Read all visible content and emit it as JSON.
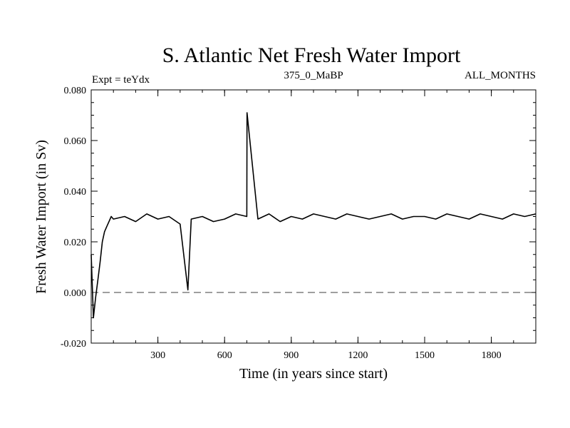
{
  "header": {
    "title": "S. Atlantic Net Fresh Water Import",
    "experiment": "Expt = teYdx",
    "period": "375_0_MaBP",
    "months": "ALL_MONTHS"
  },
  "chart_data": {
    "type": "line",
    "title": "S. Atlantic Net Fresh Water Import",
    "xlabel": "Time (in years since start)",
    "ylabel": "Fresh Water Import (in Sv)",
    "xlim": [
      0,
      2000
    ],
    "ylim": [
      -0.02,
      0.08
    ],
    "x_ticks": [
      300,
      600,
      900,
      1200,
      1500,
      1800
    ],
    "x_tick_labels": [
      "300",
      "600",
      "900",
      "1200",
      "1500",
      "1800"
    ],
    "y_ticks": [
      -0.02,
      0.0,
      0.02,
      0.04,
      0.06,
      0.08
    ],
    "y_tick_labels": [
      "-0.020",
      "0.000",
      "0.020",
      "0.040",
      "0.060",
      "0.080"
    ],
    "reference_line": {
      "y": 0.0,
      "style": "dashed"
    },
    "series": [
      {
        "name": "net fresh water import",
        "color": "#000000",
        "x": [
          0,
          10,
          20,
          30,
          40,
          50,
          60,
          70,
          80,
          90,
          100,
          150,
          200,
          250,
          300,
          350,
          400,
          435,
          450,
          500,
          550,
          600,
          650,
          700,
          701,
          750,
          800,
          850,
          900,
          950,
          1000,
          1050,
          1100,
          1150,
          1200,
          1250,
          1300,
          1350,
          1400,
          1450,
          1500,
          1550,
          1600,
          1650,
          1700,
          1750,
          1800,
          1850,
          1900,
          1950,
          2000
        ],
        "y": [
          0.015,
          -0.01,
          -0.002,
          0.005,
          0.012,
          0.02,
          0.024,
          0.026,
          0.028,
          0.03,
          0.029,
          0.03,
          0.028,
          0.031,
          0.029,
          0.03,
          0.027,
          0.001,
          0.029,
          0.03,
          0.028,
          0.029,
          0.031,
          0.03,
          0.071,
          0.029,
          0.031,
          0.028,
          0.03,
          0.029,
          0.031,
          0.03,
          0.029,
          0.031,
          0.03,
          0.029,
          0.03,
          0.031,
          0.029,
          0.03,
          0.03,
          0.029,
          0.031,
          0.03,
          0.029,
          0.031,
          0.03,
          0.029,
          0.031,
          0.03,
          0.031
        ]
      }
    ]
  }
}
